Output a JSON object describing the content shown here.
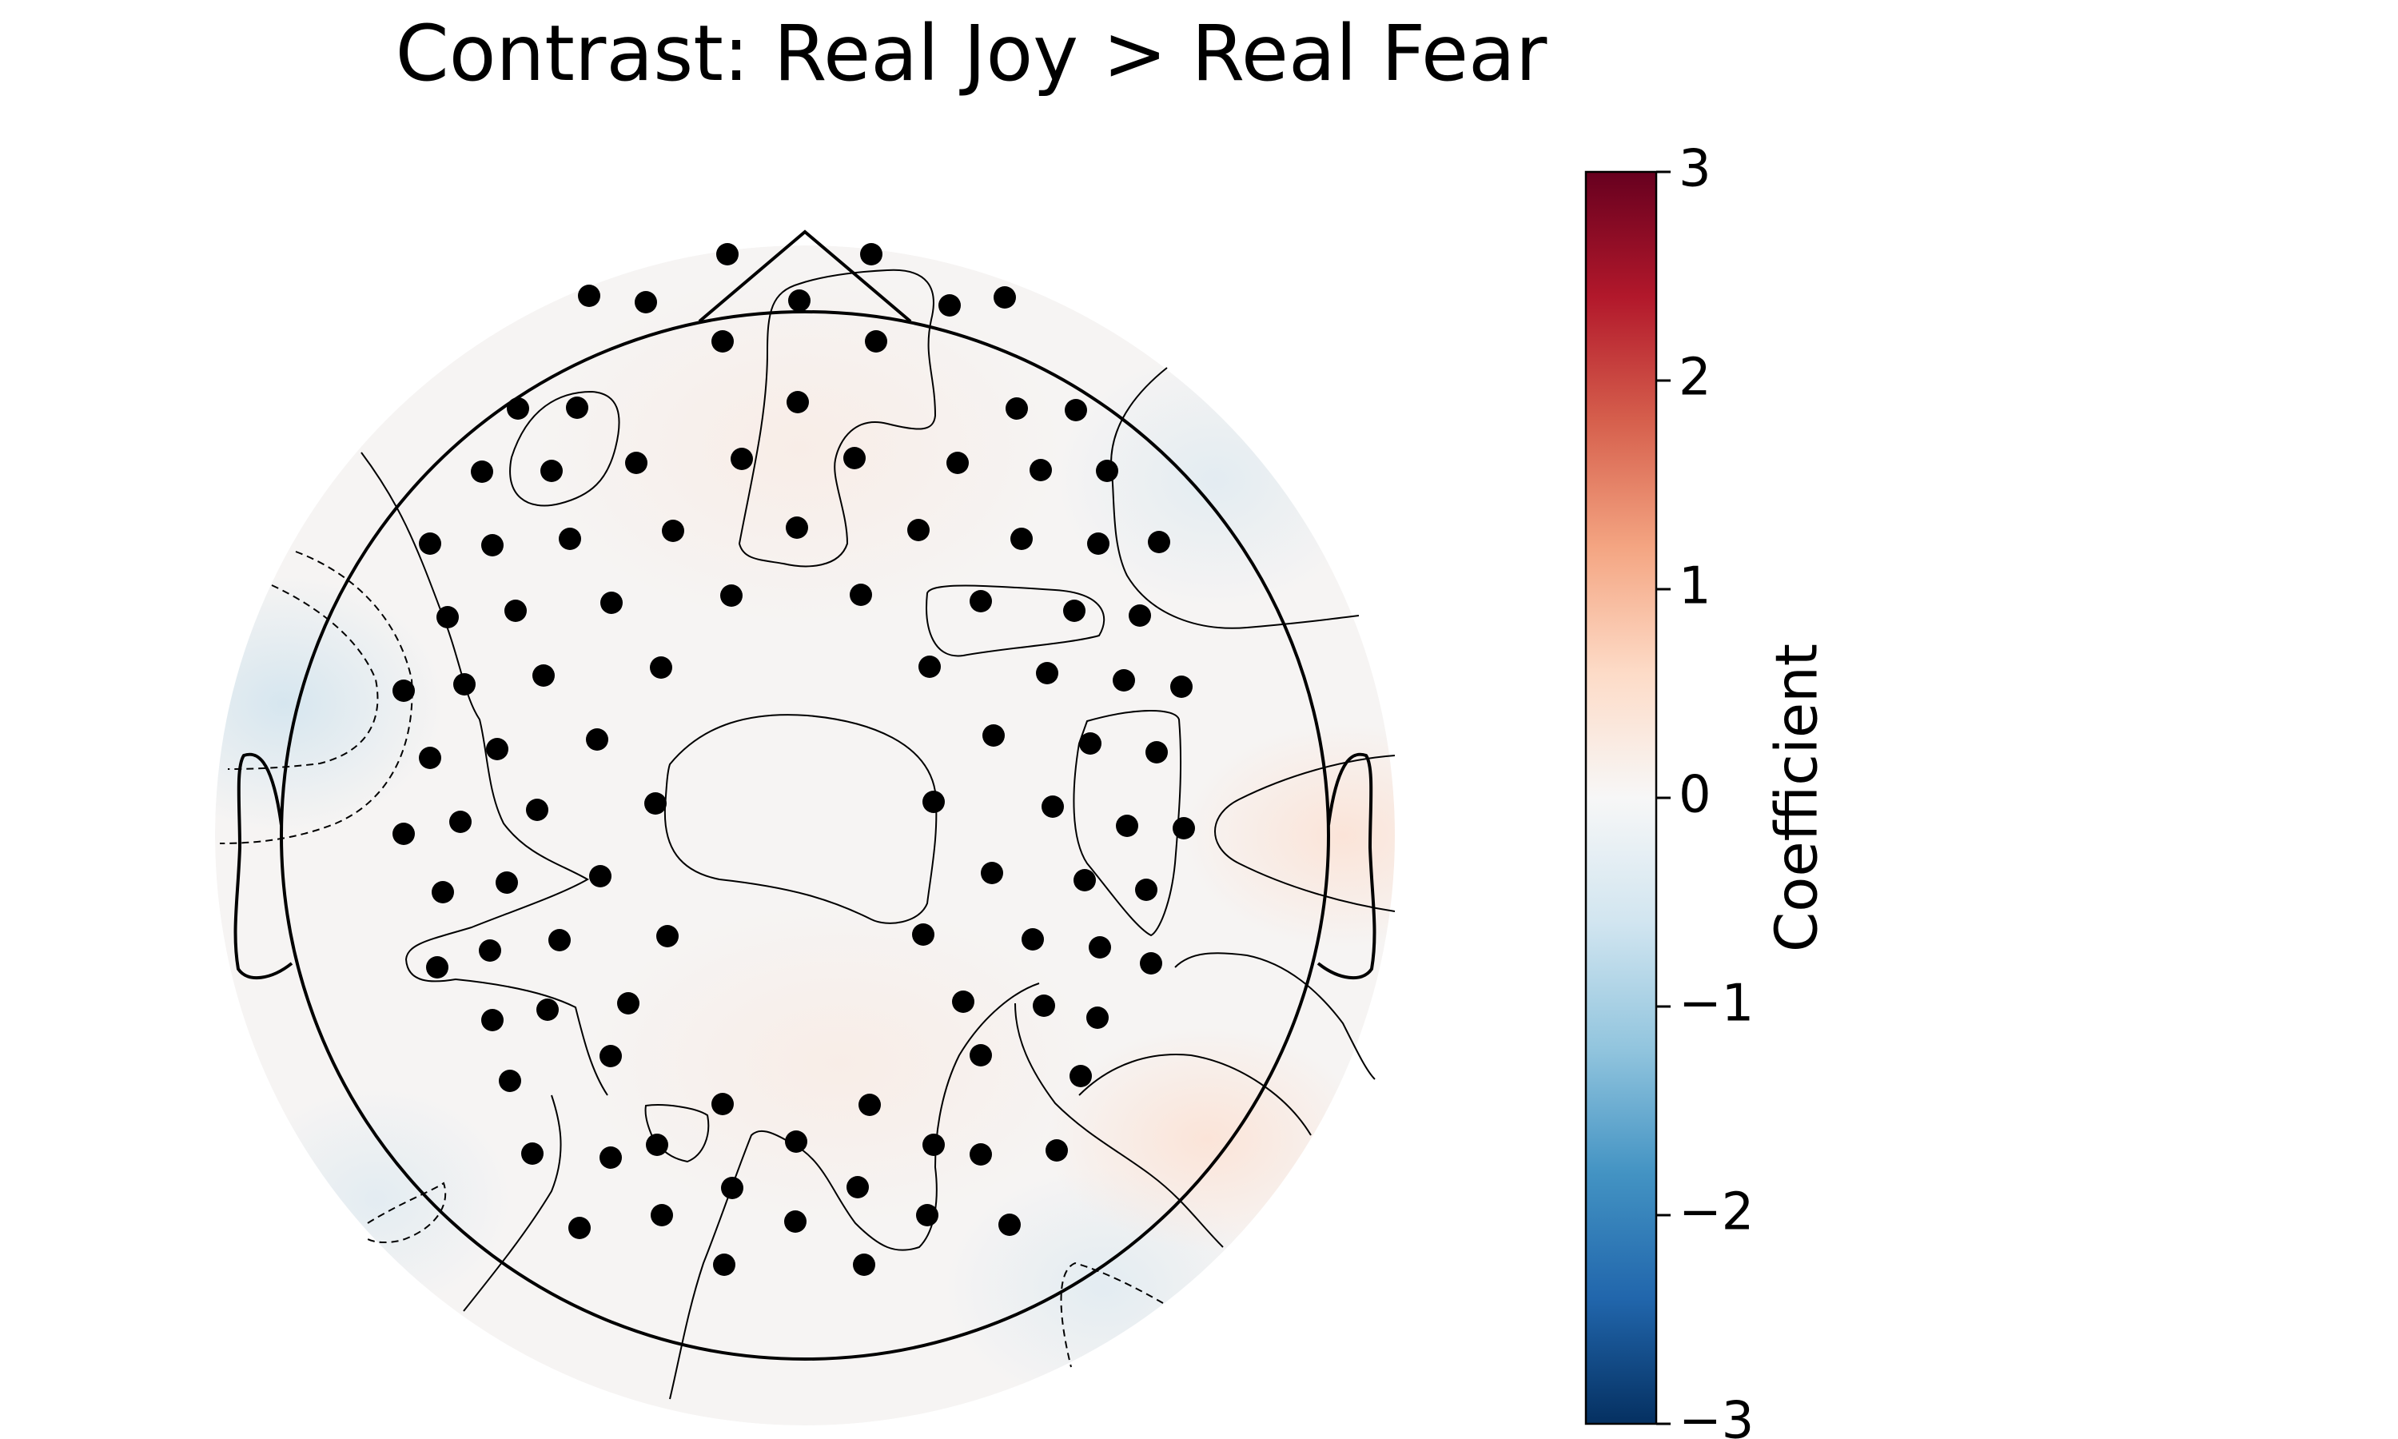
{
  "figure": {
    "title": "Contrast: Real Joy > Real Fear"
  },
  "chart_data": {
    "type": "heatmap",
    "title": "Contrast: Real Joy > Real Fear",
    "subtype": "eeg-scalp-topomap",
    "colorbar": {
      "label": "Coefficient",
      "colormap": "RdBu_r",
      "vmin": -3,
      "vmax": 3,
      "ticks": [
        -3,
        -2,
        -1,
        0,
        1,
        2,
        3
      ],
      "tick_labels": [
        "−3",
        "−2",
        "−1",
        "0",
        "1",
        "2",
        "3"
      ],
      "colors": [
        "#053061",
        "#2166ac",
        "#4393c3",
        "#92c5de",
        "#d1e5f0",
        "#f7f7f7",
        "#fddbc7",
        "#f4a582",
        "#d6604d",
        "#b2182b",
        "#67001f"
      ]
    },
    "sensor_count": 128,
    "sensor_color": "#000000",
    "map_range_approx": [
      -0.35,
      0.35
    ],
    "notable_regions": [
      {
        "location": "left temporal",
        "sign": "negative",
        "value_approx": -0.3
      },
      {
        "location": "right temporal",
        "sign": "positive",
        "value_approx": 0.25
      },
      {
        "location": "right posterior",
        "sign": "positive",
        "value_approx": 0.25
      },
      {
        "location": "central",
        "sign": "near zero",
        "value_approx": 0.0
      }
    ],
    "contour_style": {
      "positive": "solid",
      "negative": "dashed"
    }
  }
}
